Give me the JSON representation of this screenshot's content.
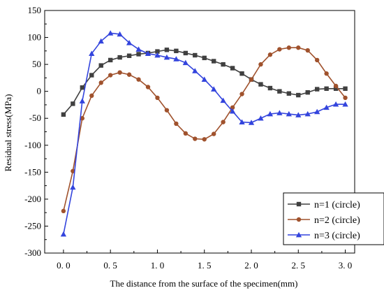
{
  "chart_data": {
    "type": "line",
    "title": "",
    "xlabel": "The distance from the surface of the specimen(mm)",
    "ylabel": "Residual stress(MPa)",
    "xlim": [
      -0.2,
      3.1
    ],
    "ylim": [
      -300,
      150
    ],
    "xticks": [
      0.0,
      0.5,
      1.0,
      1.5,
      2.0,
      2.5,
      3.0
    ],
    "xtick_labels": [
      "0. 0",
      "0. 5",
      "1. 0",
      "1. 5",
      "2. 0",
      "2. 5",
      "3. 0"
    ],
    "yticks": [
      150,
      100,
      50,
      0,
      -50,
      -100,
      -150,
      -200,
      -250,
      -300
    ],
    "ytick_labels": [
      "150",
      "100",
      "50",
      "0",
      "-50",
      "-100",
      "-150",
      "-200",
      "-250",
      "-300"
    ],
    "legend_position": "bottom-right",
    "series": [
      {
        "name": "n=1 (circle)",
        "color": "#404040",
        "marker": "square",
        "x": [
          0.0,
          0.1,
          0.2,
          0.3,
          0.4,
          0.5,
          0.6,
          0.7,
          0.8,
          0.9,
          1.0,
          1.1,
          1.2,
          1.3,
          1.4,
          1.5,
          1.6,
          1.7,
          1.8,
          1.9,
          2.0,
          2.1,
          2.2,
          2.3,
          2.4,
          2.5,
          2.6,
          2.7,
          2.8,
          2.9,
          3.0
        ],
        "y": [
          -43,
          -23,
          7,
          30,
          48,
          58,
          63,
          66,
          69,
          71,
          74,
          77,
          75,
          71,
          67,
          62,
          56,
          50,
          43,
          33,
          22,
          13,
          6,
          0,
          -4,
          -7,
          -2,
          4,
          5,
          5,
          5
        ]
      },
      {
        "name": "n=2 (circle)",
        "color": "#a0522d",
        "marker": "circle",
        "x": [
          0.0,
          0.1,
          0.2,
          0.3,
          0.4,
          0.5,
          0.6,
          0.7,
          0.8,
          0.9,
          1.0,
          1.1,
          1.2,
          1.3,
          1.4,
          1.5,
          1.6,
          1.7,
          1.8,
          1.9,
          2.0,
          2.1,
          2.2,
          2.3,
          2.4,
          2.5,
          2.6,
          2.7,
          2.8,
          2.9,
          3.0
        ],
        "y": [
          -222,
          -148,
          -50,
          -8,
          16,
          30,
          35,
          31,
          22,
          8,
          -12,
          -35,
          -60,
          -78,
          -88,
          -89,
          -79,
          -57,
          -30,
          -5,
          22,
          50,
          68,
          78,
          81,
          81,
          76,
          58,
          33,
          10,
          -12
        ]
      },
      {
        "name": "n=3 (circle)",
        "color": "#3344dd",
        "marker": "triangle",
        "x": [
          0.0,
          0.1,
          0.2,
          0.3,
          0.4,
          0.5,
          0.6,
          0.7,
          0.8,
          0.9,
          1.0,
          1.1,
          1.2,
          1.3,
          1.4,
          1.5,
          1.6,
          1.7,
          1.8,
          1.9,
          2.0,
          2.1,
          2.2,
          2.3,
          2.4,
          2.5,
          2.6,
          2.7,
          2.8,
          2.9,
          3.0
        ],
        "y": [
          -265,
          -178,
          -18,
          70,
          93,
          108,
          106,
          90,
          78,
          70,
          67,
          63,
          60,
          53,
          38,
          22,
          4,
          -17,
          -37,
          -57,
          -58,
          -50,
          -42,
          -40,
          -42,
          -44,
          -42,
          -38,
          -30,
          -24,
          -24
        ]
      }
    ]
  }
}
